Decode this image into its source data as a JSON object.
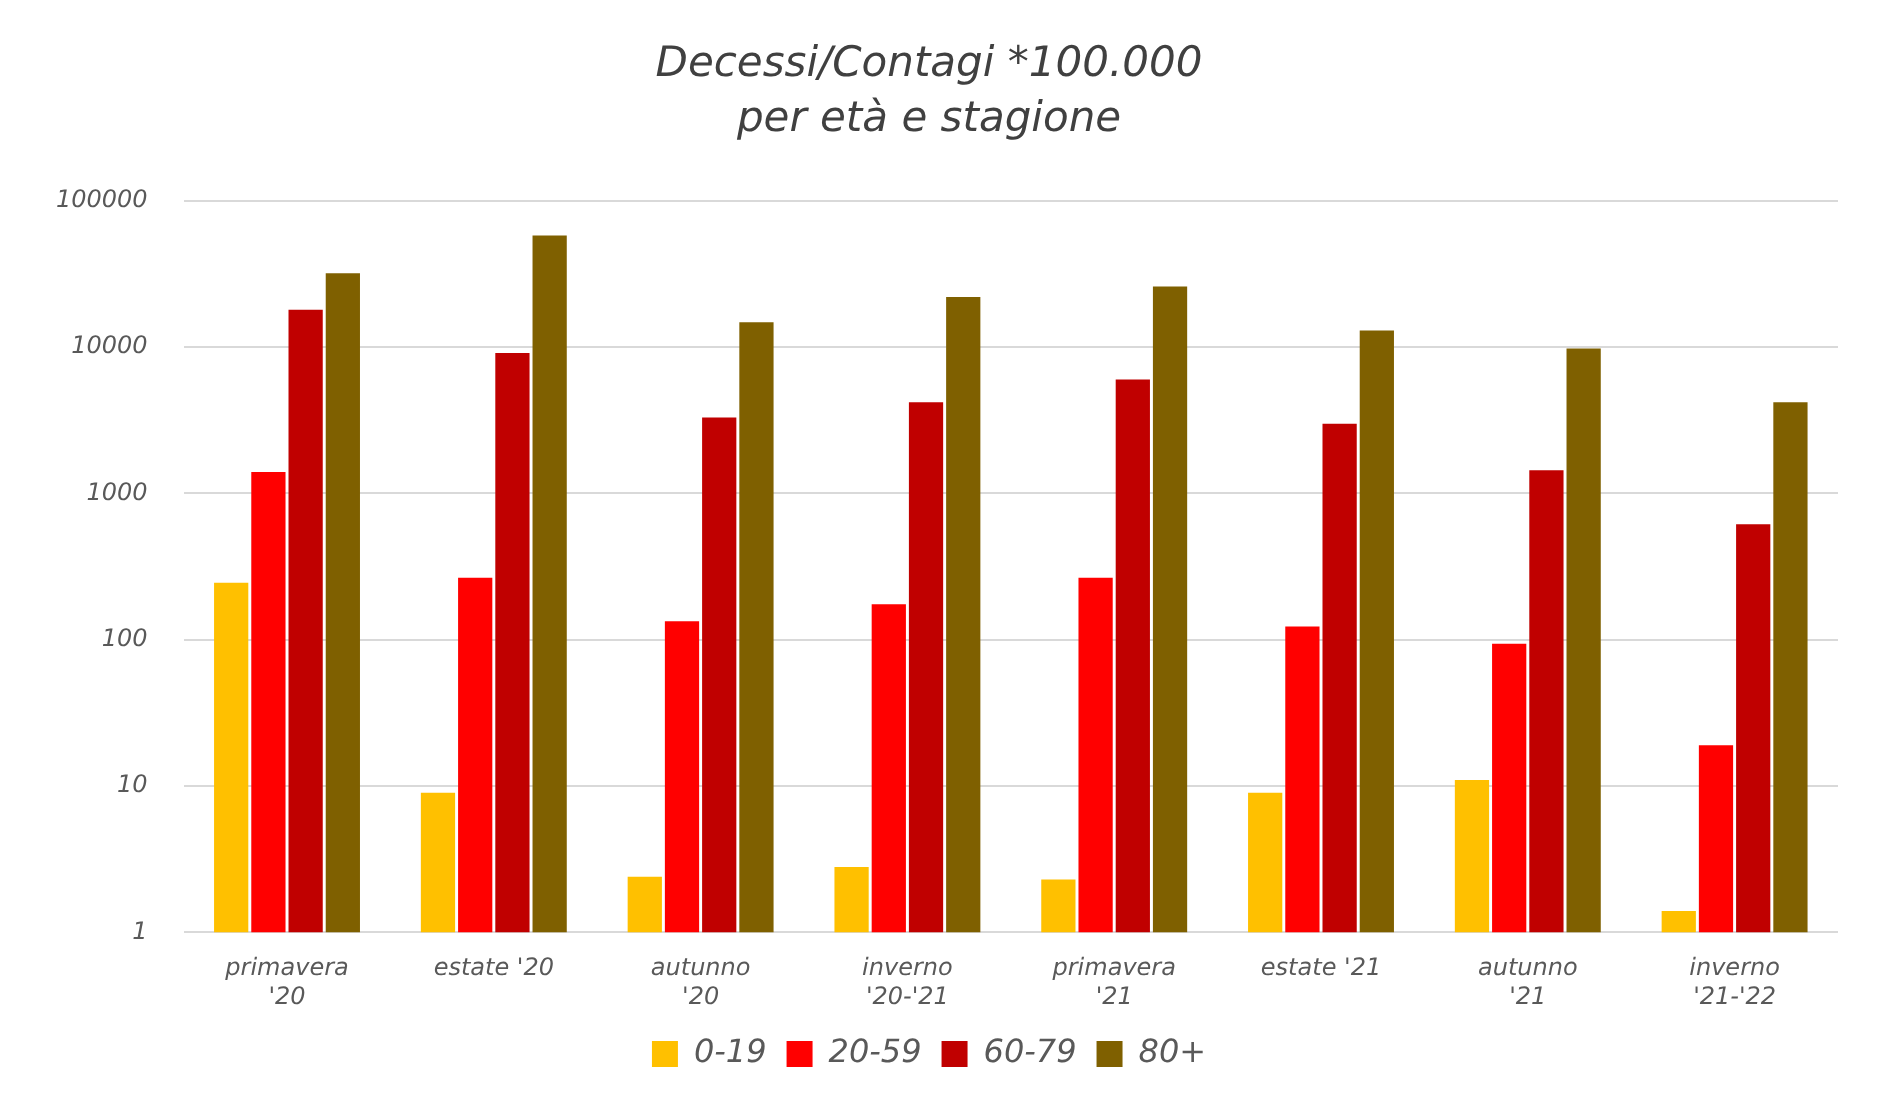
{
  "chart_data": {
    "type": "bar",
    "title": "Decessi/Contagi *100.000",
    "subtitle": "per età e stagione",
    "categories": [
      "primavera '20",
      "estate '20",
      "autunno '20",
      "inverno '20-'21",
      "primavera '21",
      "estate '21",
      "autunno '21",
      "inverno '21-'22"
    ],
    "series": [
      {
        "name": "0-19",
        "color": "#ffc000",
        "values": [
          245,
          9,
          2.4,
          2.8,
          2.3,
          9,
          11,
          1.4
        ]
      },
      {
        "name": "20-59",
        "color": "#ff0000",
        "values": [
          1400,
          265,
          134,
          175,
          265,
          123,
          94,
          19
        ]
      },
      {
        "name": "60-79",
        "color": "#c00000",
        "values": [
          18000,
          9100,
          3300,
          4200,
          6000,
          3000,
          1440,
          615
        ]
      },
      {
        "name": "80+",
        "color": "#7f6000",
        "values": [
          32000,
          58000,
          14800,
          22000,
          26000,
          13000,
          9800,
          4200
        ]
      }
    ],
    "log": true,
    "ylim": [
      1,
      100000
    ],
    "yticks": [
      1,
      10,
      100,
      1000,
      10000,
      100000
    ],
    "grid": "y",
    "legend": "bottom"
  }
}
